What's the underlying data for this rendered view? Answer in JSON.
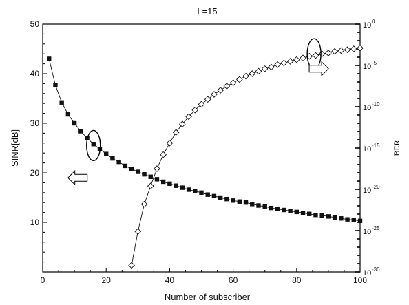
{
  "chart_data": {
    "type": "line",
    "title": "L=15",
    "xlabel": "Number of subscriber",
    "ylabel_left": "SINR[dB]",
    "ylabel_right": "BER",
    "xlim": [
      0,
      100
    ],
    "ylim_left": [
      0,
      50
    ],
    "ylim_right_log10": [
      -30,
      0
    ],
    "right_axis_scale": "log",
    "grid": false,
    "x_ticks": [
      0,
      20,
      40,
      60,
      80,
      100
    ],
    "y_left_ticks": [
      10,
      20,
      30,
      40,
      50
    ],
    "y_right_ticks": [
      {
        "base": "10",
        "exp": "0",
        "value": 0
      },
      {
        "base": "10",
        "exp": "-5",
        "value": -5
      },
      {
        "base": "10",
        "exp": "-10",
        "value": -10
      },
      {
        "base": "10",
        "exp": "-15",
        "value": -15
      },
      {
        "base": "10",
        "exp": "-20",
        "value": -20
      },
      {
        "base": "10",
        "exp": "-25",
        "value": -25
      },
      {
        "base": "10",
        "exp": "-30",
        "value": -30
      }
    ],
    "series": [
      {
        "axis": "left",
        "marker": "filled-square",
        "color": "#111111",
        "x": [
          2,
          4,
          6,
          8,
          10,
          12,
          14,
          16,
          18,
          20,
          22,
          24,
          26,
          28,
          30,
          32,
          34,
          36,
          38,
          40,
          42,
          44,
          46,
          48,
          50,
          52,
          54,
          56,
          58,
          60,
          62,
          64,
          66,
          68,
          70,
          72,
          74,
          76,
          78,
          80,
          82,
          84,
          86,
          88,
          90,
          92,
          94,
          96,
          98,
          100
        ],
        "y": [
          43.0,
          37.7,
          34.2,
          31.8,
          30.0,
          28.4,
          27.0,
          25.8,
          24.8,
          23.8,
          22.9,
          22.2,
          21.4,
          20.8,
          20.2,
          19.7,
          19.2,
          18.7,
          18.2,
          17.8,
          17.4,
          17.0,
          16.6,
          16.3,
          16.0,
          15.6,
          15.3,
          15.0,
          14.7,
          14.4,
          14.2,
          14.0,
          13.7,
          13.4,
          13.2,
          12.9,
          12.7,
          12.5,
          12.3,
          12.1,
          11.9,
          11.7,
          11.5,
          11.4,
          11.2,
          11.0,
          10.8,
          10.6,
          10.5,
          10.3
        ]
      },
      {
        "axis": "right",
        "marker": "open-diamond",
        "color": "#111111",
        "x": [
          28,
          30,
          32,
          34,
          36,
          38,
          40,
          42,
          44,
          46,
          48,
          50,
          52,
          54,
          56,
          58,
          60,
          62,
          64,
          66,
          68,
          70,
          72,
          74,
          76,
          78,
          80,
          82,
          84,
          86,
          88,
          90,
          92,
          94,
          96,
          98,
          100
        ],
        "y_log10": [
          -29.2,
          -25.1,
          -21.8,
          -19.6,
          -17.5,
          -15.8,
          -14.4,
          -13.1,
          -12.1,
          -11.2,
          -10.4,
          -9.7,
          -9.1,
          -8.5,
          -8.0,
          -7.5,
          -7.1,
          -6.7,
          -6.3,
          -6.0,
          -5.7,
          -5.4,
          -5.2,
          -4.9,
          -4.7,
          -4.5,
          -4.3,
          -4.1,
          -3.9,
          -3.8,
          -3.6,
          -3.5,
          -3.3,
          -3.2,
          -3.1,
          -3.0,
          -2.9
        ]
      }
    ],
    "annotations": [
      {
        "shape": "ellipse",
        "x": 16,
        "y": 25.5,
        "axis": "left",
        "note": "circles SINR curve"
      },
      {
        "shape": "ellipse",
        "x": 85.5,
        "y_log10": -3.6,
        "axis": "right",
        "note": "circles BER curve"
      },
      {
        "shape": "arrow",
        "direction": "left",
        "x": 11,
        "y": 19,
        "axis": "left"
      },
      {
        "shape": "arrow",
        "direction": "right",
        "x": 87,
        "y": 41,
        "axis": "left"
      }
    ]
  }
}
